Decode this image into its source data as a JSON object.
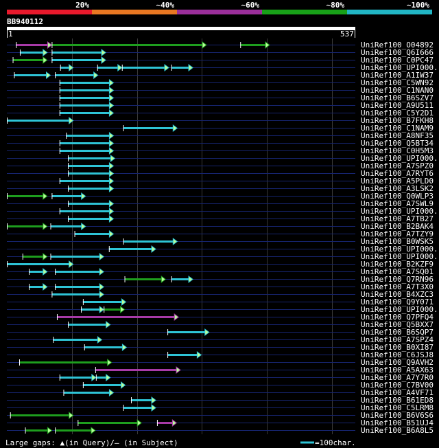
{
  "header": {
    "id_scale": [
      {
        "label": "20%",
        "color": "#e8192c"
      },
      {
        "label": "~40%",
        "color": "#e87722"
      },
      {
        "label": "~60%",
        "color": "#9a2f9a"
      },
      {
        "label": "~80%",
        "color": "#18a018"
      },
      {
        "label": "~100%",
        "color": "#21b5c4"
      }
    ],
    "query_id": "BB940112",
    "query_start": "1",
    "query_end": "537"
  },
  "colors": {
    "cyan": "#2ec4d6",
    "green": "#1e9e1e",
    "magenta": "#a83aa8",
    "line": "#16246e",
    "grid": "#3a3a3a"
  },
  "chart_data": {
    "type": "blast-alignment-overview",
    "query_length": 537,
    "hits": [
      {
        "name": "UniRef100_O04892",
        "segs": [
          [
            15,
            70,
            "magenta"
          ],
          [
            70,
            308,
            "green"
          ],
          [
            360,
            405,
            "green"
          ]
        ]
      },
      {
        "name": "UniRef100_Q6I666",
        "segs": [
          [
            21,
            63,
            "cyan"
          ],
          [
            70,
            153,
            "cyan"
          ]
        ]
      },
      {
        "name": "UniRef100_C0PC47",
        "segs": [
          [
            10,
            63,
            "green"
          ],
          [
            70,
            153,
            "cyan"
          ]
        ]
      },
      {
        "name": "UniRef100_UPI000..",
        "segs": [
          [
            83,
            103,
            "cyan"
          ],
          [
            140,
            178,
            "cyan"
          ],
          [
            178,
            250,
            "cyan"
          ],
          [
            254,
            287,
            "cyan"
          ]
        ]
      },
      {
        "name": "UniRef100_A1IW37",
        "segs": [
          [
            12,
            68,
            "cyan"
          ],
          [
            75,
            141,
            "cyan"
          ]
        ]
      },
      {
        "name": "UniRef100_C5WN92",
        "segs": [
          [
            82,
            165,
            "cyan"
          ]
        ]
      },
      {
        "name": "UniRef100_C1NAN0",
        "segs": [
          [
            82,
            165,
            "cyan"
          ]
        ]
      },
      {
        "name": "UniRef100_B6SZV7",
        "segs": [
          [
            82,
            165,
            "cyan"
          ]
        ]
      },
      {
        "name": "UniRef100_A9U511",
        "segs": [
          [
            82,
            165,
            "cyan"
          ]
        ]
      },
      {
        "name": "UniRef100_C5Y2D1",
        "segs": [
          [
            82,
            165,
            "cyan"
          ]
        ]
      },
      {
        "name": "UniRef100_B7FKH8",
        "segs": [
          [
            1,
            103,
            "cyan"
          ]
        ]
      },
      {
        "name": "UniRef100_C1NAM9",
        "segs": [
          [
            180,
            263,
            "cyan"
          ]
        ]
      },
      {
        "name": "UniRef100_A8NF35",
        "segs": [
          [
            92,
            165,
            "cyan"
          ]
        ]
      },
      {
        "name": "UniRef100_Q5BT34",
        "segs": [
          [
            82,
            165,
            "cyan"
          ]
        ]
      },
      {
        "name": "UniRef100_C0H5M3",
        "segs": [
          [
            82,
            165,
            "cyan"
          ]
        ]
      },
      {
        "name": "UniRef100_UPI000..",
        "segs": [
          [
            95,
            167,
            "cyan"
          ]
        ]
      },
      {
        "name": "UniRef100_A7SPZ0",
        "segs": [
          [
            95,
            165,
            "cyan"
          ]
        ]
      },
      {
        "name": "UniRef100_A7RYT6",
        "segs": [
          [
            95,
            165,
            "cyan"
          ]
        ]
      },
      {
        "name": "UniRef100_A5PLD0",
        "segs": [
          [
            82,
            165,
            "cyan"
          ]
        ]
      },
      {
        "name": "UniRef100_A3LSK2",
        "segs": [
          [
            95,
            165,
            "cyan"
          ]
        ]
      },
      {
        "name": "UniRef100_Q0WLP3",
        "segs": [
          [
            1,
            63,
            "green"
          ],
          [
            70,
            122,
            "cyan"
          ]
        ]
      },
      {
        "name": "UniRef100_A7SWL9",
        "segs": [
          [
            95,
            165,
            "cyan"
          ]
        ]
      },
      {
        "name": "UniRef100_UPI000..",
        "segs": [
          [
            82,
            165,
            "cyan"
          ]
        ]
      },
      {
        "name": "UniRef100_A7TB27",
        "segs": [
          [
            95,
            165,
            "cyan"
          ]
        ]
      },
      {
        "name": "UniRef100_B2BAK4",
        "segs": [
          [
            1,
            63,
            "green"
          ],
          [
            68,
            122,
            "cyan"
          ]
        ]
      },
      {
        "name": "UniRef100_A7TZY9",
        "segs": [
          [
            105,
            165,
            "cyan"
          ]
        ]
      },
      {
        "name": "UniRef100_B0WSK5",
        "segs": [
          [
            180,
            263,
            "cyan"
          ]
        ]
      },
      {
        "name": "UniRef100_UPI000..",
        "segs": [
          [
            158,
            230,
            "cyan"
          ]
        ]
      },
      {
        "name": "UniRef100_UPI000..",
        "segs": [
          [
            25,
            63,
            "green"
          ],
          [
            68,
            150,
            "cyan"
          ]
        ]
      },
      {
        "name": "UniRef100_B2KZF9",
        "segs": [
          [
            1,
            103,
            "cyan"
          ]
        ]
      },
      {
        "name": "UniRef100_A7SQ01",
        "segs": [
          [
            35,
            63,
            "cyan"
          ],
          [
            75,
            150,
            "cyan"
          ]
        ]
      },
      {
        "name": "UniRef100_Q7RN96",
        "segs": [
          [
            182,
            245,
            "green"
          ],
          [
            254,
            287,
            "cyan"
          ]
        ]
      },
      {
        "name": "UniRef100_A7T3X0",
        "segs": [
          [
            35,
            63,
            "cyan"
          ],
          [
            75,
            150,
            "cyan"
          ]
        ]
      },
      {
        "name": "UniRef100_B4XZC3",
        "segs": [
          [
            70,
            150,
            "cyan"
          ]
        ]
      },
      {
        "name": "UniRef100_Q9Y071",
        "segs": [
          [
            118,
            184,
            "cyan"
          ]
        ]
      },
      {
        "name": "UniRef100_UPI000..",
        "segs": [
          [
            115,
            150,
            "cyan"
          ],
          [
            150,
            182,
            "green"
          ]
        ]
      },
      {
        "name": "UniRef100_Q7PFQ4",
        "segs": [
          [
            78,
            265,
            "magenta"
          ]
        ]
      },
      {
        "name": "UniRef100_Q5BXX7",
        "segs": [
          [
            95,
            160,
            "cyan"
          ]
        ]
      },
      {
        "name": "UniRef100_B6SQP7",
        "segs": [
          [
            248,
            312,
            "cyan"
          ]
        ]
      },
      {
        "name": "UniRef100_A7SPZ4",
        "segs": [
          [
            72,
            147,
            "cyan"
          ]
        ]
      },
      {
        "name": "UniRef100_B0XI87",
        "segs": [
          [
            120,
            185,
            "cyan"
          ]
        ]
      },
      {
        "name": "UniRef100_C6JSJ8",
        "segs": [
          [
            248,
            300,
            "cyan"
          ]
        ]
      },
      {
        "name": "UniRef100_Q9AVH2",
        "segs": [
          [
            20,
            162,
            "green"
          ]
        ]
      },
      {
        "name": "UniRef100_A5AX63",
        "segs": [
          [
            137,
            268,
            "magenta"
          ]
        ]
      },
      {
        "name": "UniRef100_A7Y7R0",
        "segs": [
          [
            82,
            138,
            "cyan"
          ],
          [
            138,
            160,
            "cyan"
          ]
        ]
      },
      {
        "name": "UniRef100_C7BV00",
        "segs": [
          [
            118,
            183,
            "cyan"
          ]
        ]
      },
      {
        "name": "UniRef100_A4VF71",
        "segs": [
          [
            88,
            165,
            "cyan"
          ]
        ]
      },
      {
        "name": "UniRef100_B61ED8",
        "segs": [
          [
            192,
            230,
            "cyan"
          ]
        ]
      },
      {
        "name": "UniRef100_C5LRM8",
        "segs": [
          [
            180,
            230,
            "cyan"
          ]
        ]
      },
      {
        "name": "UniRef100_B6V6S6",
        "segs": [
          [
            6,
            103,
            "green"
          ]
        ]
      },
      {
        "name": "UniRef100_B51UJ4",
        "segs": [
          [
            110,
            208,
            "green"
          ],
          [
            232,
            262,
            "magenta"
          ]
        ]
      },
      {
        "name": "UniRef100_B6A8L5",
        "segs": [
          [
            29,
            70,
            "green"
          ],
          [
            75,
            137,
            "green"
          ]
        ]
      }
    ]
  },
  "legend": {
    "gaps_label": "Large gaps: ▲(in Query)/— (in Subject)",
    "scale_label": "=100char."
  }
}
